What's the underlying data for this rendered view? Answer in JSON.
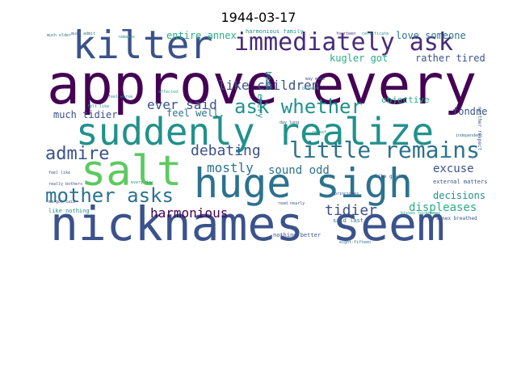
{
  "title": "1944-03-17",
  "palette": {
    "dark_purple": "#440154",
    "indigo": "#472c7a",
    "blue": "#3b528b",
    "steel": "#2c728e",
    "teal": "#21918c",
    "green_teal": "#28ae80",
    "green": "#5ec962",
    "lime": "#addc30",
    "yellow": "#fde725"
  },
  "words": [
    {
      "text": "approve every",
      "color": "#440154"
    },
    {
      "text": "nicknames seem",
      "color": "#3b528b"
    },
    {
      "text": "suddenly realize",
      "color": "#21918c"
    },
    {
      "text": "huge sigh",
      "color": "#2c728e"
    },
    {
      "text": "salt",
      "color": "#5ec962"
    },
    {
      "text": "kilter",
      "color": "#3b528b"
    },
    {
      "text": "immediately ask",
      "color": "#472c7a"
    },
    {
      "text": "little remains",
      "color": "#2c728e"
    },
    {
      "text": "ask whether",
      "color": "#21918c"
    },
    {
      "text": "mother asks",
      "color": "#2c728e"
    },
    {
      "text": "admire",
      "color": "#3b528b"
    },
    {
      "text": "debating",
      "color": "#3b528b"
    },
    {
      "text": "ever said",
      "color": "#3b528b"
    },
    {
      "text": "like children",
      "color": "#3b528b"
    },
    {
      "text": "harmonious",
      "color": "#440154"
    },
    {
      "text": "mostly",
      "color": "#2c728e"
    },
    {
      "text": "sound odd",
      "color": "#2c728e"
    },
    {
      "text": "tidier",
      "color": "#3b528b"
    },
    {
      "text": "displeases",
      "color": "#28ae80"
    },
    {
      "text": "excuse",
      "color": "#3b528b"
    },
    {
      "text": "decisions",
      "color": "#21918c"
    },
    {
      "text": "entire annex",
      "color": "#28ae80"
    },
    {
      "text": "love someone",
      "color": "#2c728e"
    },
    {
      "text": "rather tired",
      "color": "#3b528b"
    },
    {
      "text": "kugler got",
      "color": "#28ae80"
    },
    {
      "text": "much tidier",
      "color": "#3b528b"
    },
    {
      "text": "feel well.",
      "color": "#2c728e"
    },
    {
      "text": "fondness",
      "color": "#3b528b"
    },
    {
      "text": "objective",
      "color": "#28ae80"
    },
    {
      "text": "book",
      "color": "#21918c"
    },
    {
      "text": "every",
      "color": "#21918c"
    },
    {
      "text": "harmonious family",
      "color": "#21918c"
    },
    {
      "text": "must admit",
      "color": "#2c728e"
    },
    {
      "text": "remains",
      "color": "#21918c"
    },
    {
      "text": "fourteen",
      "color": "#472c7a"
    },
    {
      "text": "certificate",
      "color": "#21918c"
    },
    {
      "text": "much older",
      "color": "#2c728e"
    },
    {
      "text": "external matters",
      "color": "#3b528b"
    },
    {
      "text": "like nothing",
      "color": "#21918c"
    },
    {
      "text": "nothing better",
      "color": "#3b528b"
    },
    {
      "text": "said last",
      "color": "#2c728e"
    },
    {
      "text": "annex breathed",
      "color": "#3b528b"
    },
    {
      "text": "like giving",
      "color": "#3b528b"
    },
    {
      "text": "kisses",
      "color": "#21918c"
    },
    {
      "text": "nicknames",
      "color": "#21918c"
    },
    {
      "text": "independent",
      "color": "#2c728e"
    },
    {
      "text": "principles",
      "color": "#3b528b"
    },
    {
      "text": "feel like",
      "color": "#3b528b"
    },
    {
      "text": "really bothers",
      "color": "#3b528b"
    },
    {
      "text": "day long",
      "color": "#3b528b"
    },
    {
      "text": "neither respect",
      "color": "#3b528b"
    },
    {
      "text": "eight-fifteen",
      "color": "#2c728e"
    },
    {
      "text": "felt like",
      "color": "#21918c"
    },
    {
      "text": "margot said",
      "color": "#3b528b"
    },
    {
      "text": "read nearly",
      "color": "#3b528b"
    },
    {
      "text": "affected",
      "color": "#28ae80"
    },
    {
      "text": "feel worse",
      "color": "#21918c"
    },
    {
      "text": "every day",
      "color": "#21918c"
    },
    {
      "text": "may make",
      "color": "#3b528b"
    },
    {
      "text": "relief",
      "color": "#21918c"
    },
    {
      "text": "bothers",
      "color": "#21918c"
    }
  ]
}
